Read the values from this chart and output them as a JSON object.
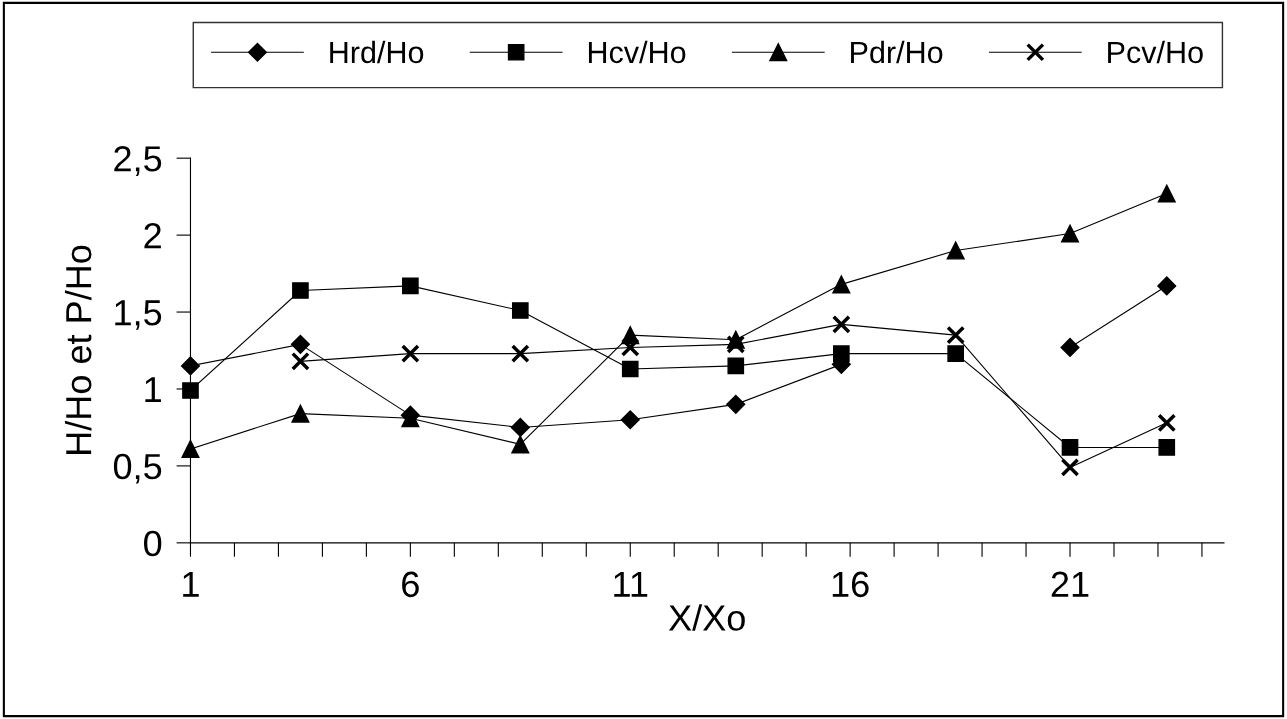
{
  "chart_data": {
    "type": "line",
    "xlabel": "X/Xo",
    "ylabel": "H/Ho et P/Ho",
    "x": [
      1,
      3.5,
      6,
      8.5,
      11,
      13.4,
      15.8,
      18.4,
      21,
      23.2
    ],
    "series": [
      {
        "name": "Hrd/Ho",
        "color": "#000000",
        "marker": "diamond",
        "values": [
          1.15,
          1.29,
          0.83,
          0.75,
          0.8,
          0.9,
          1.16,
          null,
          1.27,
          1.67
        ]
      },
      {
        "name": "Hcv/Ho",
        "color": "#000000",
        "marker": "square",
        "values": [
          0.99,
          1.64,
          1.67,
          1.51,
          1.13,
          1.15,
          1.23,
          1.23,
          0.62,
          0.62
        ]
      },
      {
        "name": "Pdr/Ho",
        "color": "#000000",
        "marker": "triangle",
        "values": [
          0.61,
          0.84,
          0.81,
          0.64,
          1.35,
          1.32,
          1.68,
          1.9,
          2.01,
          2.27
        ]
      },
      {
        "name": "Pcv/Ho",
        "color": "#000000",
        "marker": "cross",
        "values": [
          null,
          1.18,
          1.23,
          1.23,
          1.27,
          1.29,
          1.42,
          1.35,
          0.49,
          0.78
        ]
      }
    ],
    "xlim": [
      1,
      24.5
    ],
    "xticks": [
      1,
      {
        "value": 2,
        "label": null
      },
      {
        "value": 3,
        "label": null
      },
      {
        "value": 4,
        "label": null
      },
      {
        "value": 5,
        "label": null
      },
      6,
      {
        "value": 7,
        "label": null
      },
      {
        "value": 8,
        "label": null
      },
      {
        "value": 9,
        "label": null
      },
      {
        "value": 10,
        "label": null
      },
      11,
      {
        "value": 12,
        "label": null
      },
      {
        "value": 13,
        "label": null
      },
      {
        "value": 14,
        "label": null
      },
      {
        "value": 15,
        "label": null
      },
      16,
      {
        "value": 17,
        "label": null
      },
      {
        "value": 18,
        "label": null
      },
      {
        "value": 19,
        "label": null
      },
      {
        "value": 20,
        "label": null
      },
      21,
      {
        "value": 22,
        "label": null
      },
      {
        "value": 23,
        "label": null
      },
      {
        "value": 24,
        "label": null
      }
    ],
    "ylim": [
      0,
      2.5
    ],
    "yticks": [
      {
        "value": 0,
        "label": "0"
      },
      {
        "value": 0.5,
        "label": "0,5"
      },
      {
        "value": 1,
        "label": "1"
      },
      {
        "value": 1.5,
        "label": "1,5"
      },
      {
        "value": 2,
        "label": "2"
      },
      {
        "value": 2.5,
        "label": "2,5"
      }
    ],
    "grid": false,
    "legend": "top",
    "line_style": "solid"
  }
}
